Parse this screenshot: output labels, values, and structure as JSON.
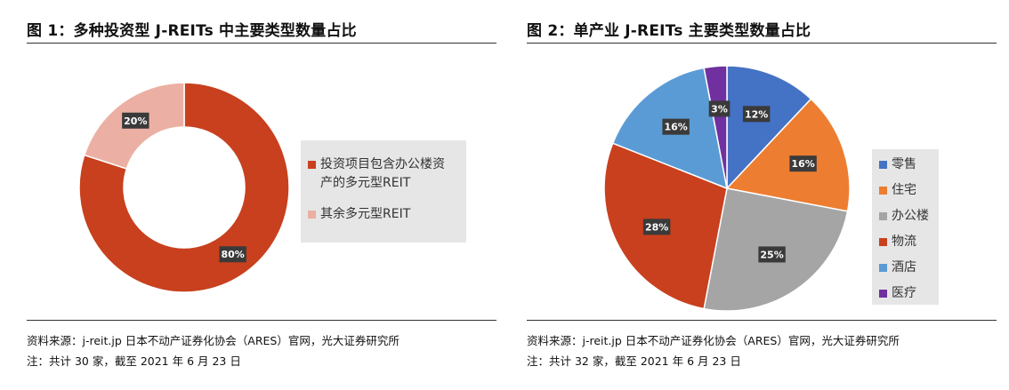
{
  "left": {
    "title": "图 1：多种投资型 J-REITs 中主要类型数量占比",
    "note_source": "资料来源：j-reit.jp  日本不动产证券化协会（ARES）官网，光大证券研究所",
    "note_count": "注：共计 30 家，截至 2021 年 6 月 23 日",
    "legend": [
      {
        "label_line1": "投资项目包含办公楼资",
        "label_line2": "产的多元型REIT",
        "color": "#c8401e"
      },
      {
        "label_line1": "其余多元型REIT",
        "label_line2": "",
        "color": "#ebb0a3"
      }
    ]
  },
  "right": {
    "title": "图 2：单产业 J-REITs 主要类型数量占比",
    "note_source": "资料来源：j-reit.jp  日本不动产证券化协会（ARES）官网，光大证券研究所",
    "note_count": "注：共计 32 家，截至 2021 年 6 月 23 日",
    "legend": [
      {
        "label": "零售",
        "color": "#4472c4"
      },
      {
        "label": "住宅",
        "color": "#ed7d31"
      },
      {
        "label": "办公楼",
        "color": "#a5a5a5"
      },
      {
        "label": "物流",
        "color": "#c8401e"
      },
      {
        "label": "酒店",
        "color": "#5b9bd5"
      },
      {
        "label": "医疗",
        "color": "#7030a0"
      }
    ]
  },
  "chart_data": [
    {
      "type": "pie",
      "variant": "donut",
      "title": "图 1：多种投资型 J-REITs 中主要类型数量占比",
      "categories": [
        "投资项目包含办公楼资产的多元型REIT",
        "其余多元型REIT"
      ],
      "values": [
        80,
        20
      ],
      "labels": [
        "80%",
        "20%"
      ],
      "colors": [
        "#c8401e",
        "#ebb0a3"
      ],
      "legend_position": "right"
    },
    {
      "type": "pie",
      "title": "图 2：单产业 J-REITs 主要类型数量占比",
      "categories": [
        "零售",
        "住宅",
        "办公楼",
        "物流",
        "酒店",
        "医疗"
      ],
      "values": [
        12,
        16,
        25,
        28,
        16,
        3
      ],
      "labels": [
        "12%",
        "16%",
        "25%",
        "28%",
        "16%",
        "3%"
      ],
      "colors": [
        "#4472c4",
        "#ed7d31",
        "#a5a5a5",
        "#c8401e",
        "#5b9bd5",
        "#7030a0"
      ],
      "legend_position": "right"
    }
  ]
}
